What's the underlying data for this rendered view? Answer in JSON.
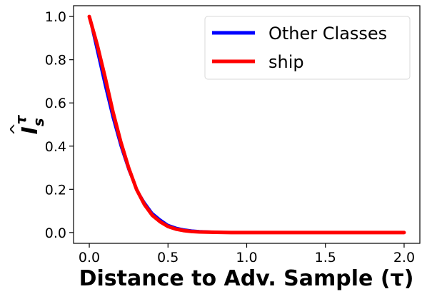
{
  "chart_data": {
    "type": "line",
    "xlabel": "Distance to Adv. Sample (τ)",
    "ylabel": "Îˢᵗ",
    "ylabel_main": "I",
    "ylabel_sub": "s",
    "ylabel_sup": "τ",
    "xlim": [
      -0.1,
      2.1
    ],
    "ylim": [
      -0.05,
      1.05
    ],
    "x_ticks": [
      0.0,
      0.5,
      1.0,
      1.5,
      2.0
    ],
    "x_tick_labels": [
      "0.0",
      "0.5",
      "1.0",
      "1.5",
      "2.0"
    ],
    "y_ticks": [
      0.0,
      0.2,
      0.4,
      0.6,
      0.8,
      1.0
    ],
    "y_tick_labels": [
      "0.0",
      "0.2",
      "0.4",
      "0.6",
      "0.8",
      "1.0"
    ],
    "grid": false,
    "legend_position": "top-right",
    "x": [
      0.0,
      0.05,
      0.1,
      0.15,
      0.2,
      0.25,
      0.3,
      0.35,
      0.4,
      0.45,
      0.5,
      0.55,
      0.6,
      0.65,
      0.7,
      0.8,
      0.9,
      1.0,
      1.2,
      1.5,
      2.0
    ],
    "series": [
      {
        "name": "Other Classes",
        "color": "#0000ff",
        "values": [
          1.0,
          0.84,
          0.68,
          0.53,
          0.4,
          0.29,
          0.2,
          0.14,
          0.09,
          0.06,
          0.035,
          0.022,
          0.014,
          0.009,
          0.006,
          0.003,
          0.001,
          0.0,
          0.0,
          0.0,
          0.0
        ]
      },
      {
        "name": "ship",
        "color": "#ff0000",
        "values": [
          1.0,
          0.87,
          0.72,
          0.56,
          0.42,
          0.3,
          0.2,
          0.13,
          0.08,
          0.05,
          0.028,
          0.016,
          0.009,
          0.005,
          0.003,
          0.001,
          0.0,
          0.0,
          0.0,
          0.0,
          0.0
        ]
      }
    ]
  }
}
